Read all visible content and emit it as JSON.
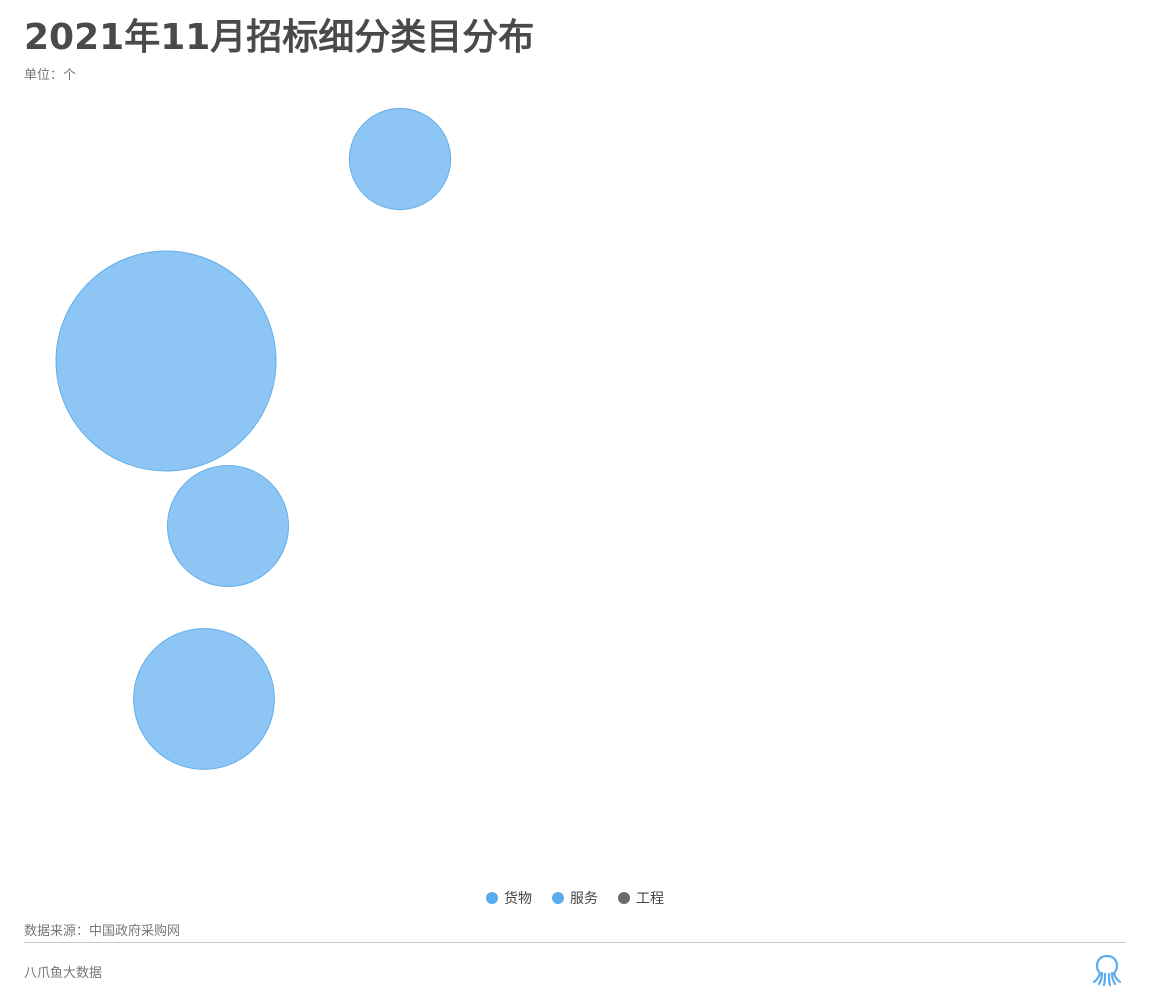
{
  "title": "2021年11月招标细分类目分布",
  "unit_label": "单位：个",
  "source_label": "数据来源：中国政府采购网",
  "brand_label": "八爪鱼大数据",
  "logo_icon": "octopus-icon",
  "colors": {
    "bubble_fill": "#8dc5f5",
    "bubble_stroke": "#64aee8",
    "goods": "#5aacec",
    "service": "#5aacec",
    "engineering": "#6b6b6b"
  },
  "chart_data": {
    "type": "scatter",
    "legend_position": "bottom-center",
    "series": [
      {
        "name": "货物",
        "color": "#5aacec"
      },
      {
        "name": "服务",
        "color": "#5aacec"
      },
      {
        "name": "工程",
        "color": "#6b6b6b"
      }
    ],
    "bubbles": [
      {
        "series": "服务",
        "relative_size": 1.0
      },
      {
        "series": "服务",
        "relative_size": 0.55
      },
      {
        "series": "服务",
        "relative_size": 0.64
      },
      {
        "series": "服务",
        "relative_size": 0.46
      }
    ]
  }
}
